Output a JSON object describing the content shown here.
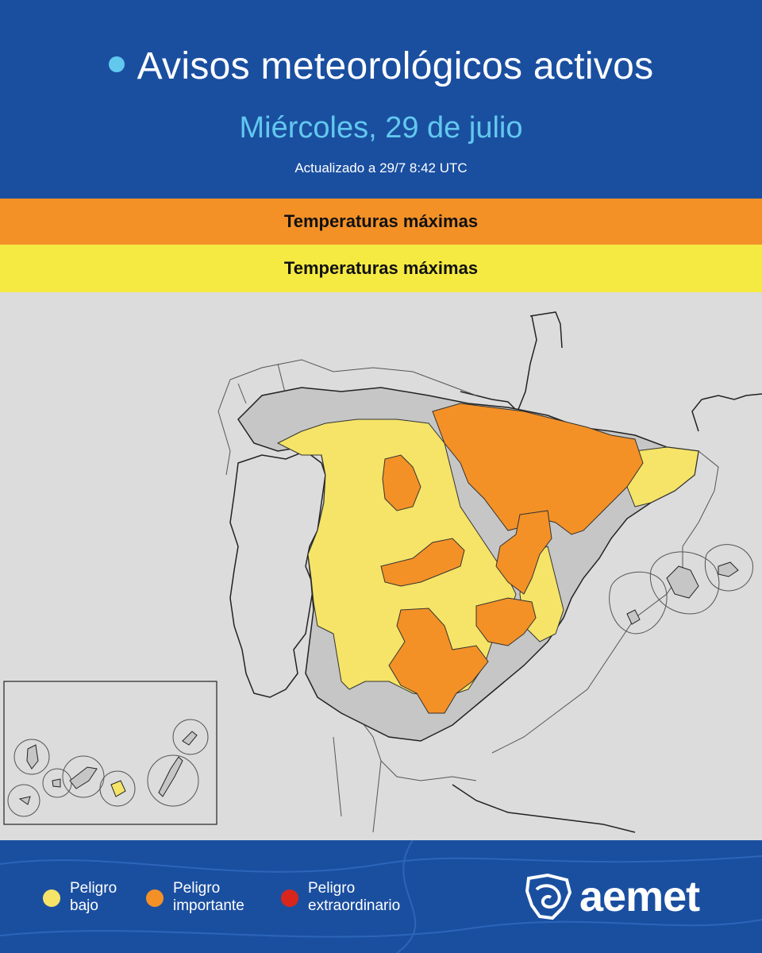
{
  "header": {
    "title": "Avisos meteorológicos activos",
    "date": "Miércoles, 29 de julio",
    "updated": "Actualizado a 29/7  8:42 UTC"
  },
  "warnings": [
    {
      "level": "orange",
      "color": "#f39127",
      "label": "Temperaturas máximas"
    },
    {
      "level": "yellow",
      "color": "#f5ea42",
      "label": "Temperaturas máximas"
    }
  ],
  "map": {
    "colors": {
      "background": "#dcdcdc",
      "land_no_warning": "#c9c9c9",
      "yellow": "#f5e467",
      "orange": "#f39127",
      "border": "#222222"
    },
    "has_canary_inset": true
  },
  "legend": [
    {
      "line1": "Peligro",
      "line2": "bajo",
      "color": "#f5e467"
    },
    {
      "line1": "Peligro",
      "line2": "importante",
      "color": "#f39127"
    },
    {
      "line1": "Peligro",
      "line2": "extraordinario",
      "color": "#d9261c"
    }
  ],
  "logo": {
    "text": "aemet",
    "icon": "aemet-logo-icon"
  }
}
